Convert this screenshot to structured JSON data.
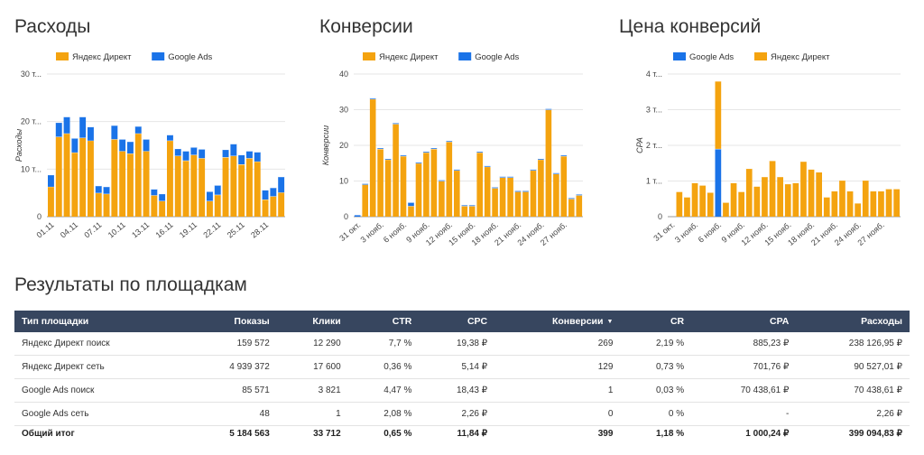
{
  "colors": {
    "yandex": "#f4a30f",
    "google": "#1a73e8",
    "header_bg": "#37465f"
  },
  "chart_data": [
    {
      "type": "bar",
      "title": "Расходы",
      "ylabel": "Расходы",
      "stacked": true,
      "legend": [
        "Яндекс Директ",
        "Google Ads"
      ],
      "yticks": [
        "0",
        "10 т...",
        "20 т...",
        "30 т..."
      ],
      "ylim": [
        0,
        30
      ],
      "xticks": [
        "01.11",
        "04.11",
        "07.11",
        "10.11",
        "13.11",
        "16.11",
        "19.11",
        "22.11",
        "25.11",
        "28.11"
      ],
      "series": [
        {
          "name": "Яндекс Директ",
          "values": [
            6.3,
            16.8,
            17.5,
            13.5,
            16.6,
            16.0,
            5.0,
            4.8,
            16.3,
            13.8,
            13.3,
            17.5,
            13.8,
            4.5,
            3.3,
            16.0,
            12.8,
            11.8,
            13.0,
            12.3,
            3.3,
            4.6,
            12.5,
            12.8,
            11.0,
            12.3,
            11.6,
            3.6,
            4.3,
            5.1
          ],
          "colors": [
            "#f4a30f"
          ]
        },
        {
          "name": "Google Ads",
          "values": [
            2.5,
            3.0,
            3.5,
            3.0,
            4.4,
            2.9,
            1.5,
            1.5,
            2.9,
            2.5,
            2.5,
            1.5,
            2.5,
            1.3,
            1.5,
            1.2,
            1.5,
            2.0,
            1.6,
            1.9,
            2.0,
            2.0,
            1.6,
            2.5,
            2.0,
            1.5,
            2.0,
            2.0,
            1.8,
            3.3
          ]
        }
      ]
    },
    {
      "type": "bar",
      "title": "Конверсии",
      "ylabel": "Конверсии",
      "stacked": true,
      "legend": [
        "Яндекс Директ",
        "Google Ads"
      ],
      "yticks": [
        "0",
        "10",
        "20",
        "30",
        "40"
      ],
      "ylim": [
        0,
        40
      ],
      "xticks": [
        "31 окт.",
        "3 нояб.",
        "6 нояб.",
        "9 нояб.",
        "12 нояб.",
        "15 нояб.",
        "18 нояб.",
        "21 нояб.",
        "24 нояб.",
        "27 нояб."
      ],
      "series": [
        {
          "name": "Яндекс Директ",
          "values": [
            0,
            9,
            33,
            19,
            16,
            26,
            17,
            3,
            15,
            18,
            19,
            10,
            21,
            13,
            3,
            3,
            18,
            14,
            8,
            11,
            11,
            7,
            7,
            13,
            16,
            30,
            12,
            17,
            5,
            6
          ]
        },
        {
          "name": "Google Ads",
          "values": [
            0.5,
            0.3,
            0.3,
            0.3,
            0.3,
            0.3,
            0.3,
            1.0,
            0.3,
            0.3,
            0.3,
            0.3,
            0.3,
            0.3,
            0.3,
            0.3,
            0.3,
            0.3,
            0.3,
            0.3,
            0.3,
            0.3,
            0.3,
            0.3,
            0.3,
            0.3,
            0.3,
            0.3,
            0.3,
            0.3
          ]
        }
      ]
    },
    {
      "type": "bar",
      "title": "Цена конверсий",
      "ylabel": "CPA",
      "stacked": true,
      "legend": [
        "Google Ads",
        "Яндекс Директ"
      ],
      "yticks": [
        "0",
        "1 т...",
        "2 т...",
        "3 т...",
        "4 т..."
      ],
      "ylim": [
        0,
        4
      ],
      "xticks": [
        "31 окт.",
        "3 нояб.",
        "6 нояб.",
        "9 нояб.",
        "12 нояб.",
        "15 нояб.",
        "18 нояб.",
        "21 нояб.",
        "24 нояб.",
        "27 нояб."
      ],
      "series": [
        {
          "name": "Google Ads",
          "values": [
            0,
            0,
            0,
            0,
            0,
            0,
            1.9,
            0,
            0,
            0,
            0,
            0,
            0,
            0,
            0,
            0,
            0,
            0,
            0,
            0,
            0,
            0,
            0,
            0,
            0,
            0,
            0,
            0,
            0,
            0
          ]
        },
        {
          "name": "Яндекс Директ",
          "values": [
            0,
            0.7,
            0.55,
            0.95,
            0.88,
            0.68,
            1.9,
            0.4,
            0.95,
            0.7,
            1.35,
            0.85,
            1.12,
            1.57,
            1.12,
            0.92,
            0.95,
            1.55,
            1.33,
            1.25,
            0.55,
            0.72,
            1.02,
            0.72,
            0.38,
            1.02,
            0.72,
            0.72,
            0.78,
            0.78
          ]
        }
      ]
    }
  ],
  "table": {
    "section_title": "Результаты по площадкам",
    "headers": [
      "Тип площадки",
      "Показы",
      "Клики",
      "CTR",
      "CPC",
      "Конверсии",
      "CR",
      "CPA",
      "Расходы"
    ],
    "rows": [
      [
        "Яндекс Директ поиск",
        "159 572",
        "12 290",
        "7,7 %",
        "19,38 ₽",
        "269",
        "2,19 %",
        "885,23 ₽",
        "238 126,95 ₽"
      ],
      [
        "Яндекс Директ сеть",
        "4 939 372",
        "17 600",
        "0,36 %",
        "5,14 ₽",
        "129",
        "0,73 %",
        "701,76 ₽",
        "90 527,01 ₽"
      ],
      [
        "Google Ads поиск",
        "85 571",
        "3 821",
        "4,47 %",
        "18,43 ₽",
        "1",
        "0,03 %",
        "70 438,61 ₽",
        "70 438,61 ₽"
      ],
      [
        "Google Ads сеть",
        "48",
        "1",
        "2,08 %",
        "2,26 ₽",
        "0",
        "0 %",
        "-",
        "2,26 ₽"
      ]
    ],
    "total": [
      "Общий итог",
      "5 184 563",
      "33 712",
      "0,65 %",
      "11,84 ₽",
      "399",
      "1,18 %",
      "1 000,24 ₽",
      "399 094,83 ₽"
    ]
  }
}
